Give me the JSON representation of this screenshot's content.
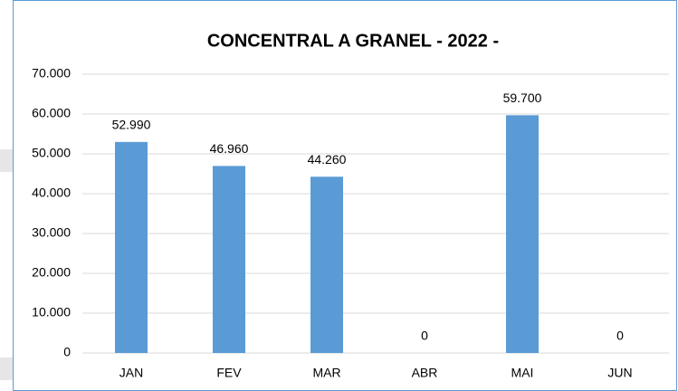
{
  "chart_data": {
    "type": "bar",
    "title": "CONCENTRAL A GRANEL - 2022 -",
    "categories": [
      "JAN",
      "FEV",
      "MAR",
      "ABR",
      "MAI",
      "JUN"
    ],
    "values": [
      52990,
      46960,
      44260,
      0,
      59700,
      0
    ],
    "value_labels": [
      "52.990",
      "46.960",
      "44.260",
      "0",
      "59.700",
      "0"
    ],
    "color": "#5b9bd5",
    "ylim": [
      0,
      70000
    ],
    "yticks": [
      0,
      {
        "value": 10000,
        "label": "10.000"
      },
      {
        "value": 20000,
        "label": "20.000"
      },
      {
        "value": 30000,
        "label": "30.000"
      },
      {
        "value": 40000,
        "label": "40.000"
      },
      {
        "value": 50000,
        "label": "50.000"
      },
      {
        "value": 60000,
        "label": "60.000"
      },
      {
        "value": 70000,
        "label": "70.000"
      }
    ],
    "grid": true
  }
}
